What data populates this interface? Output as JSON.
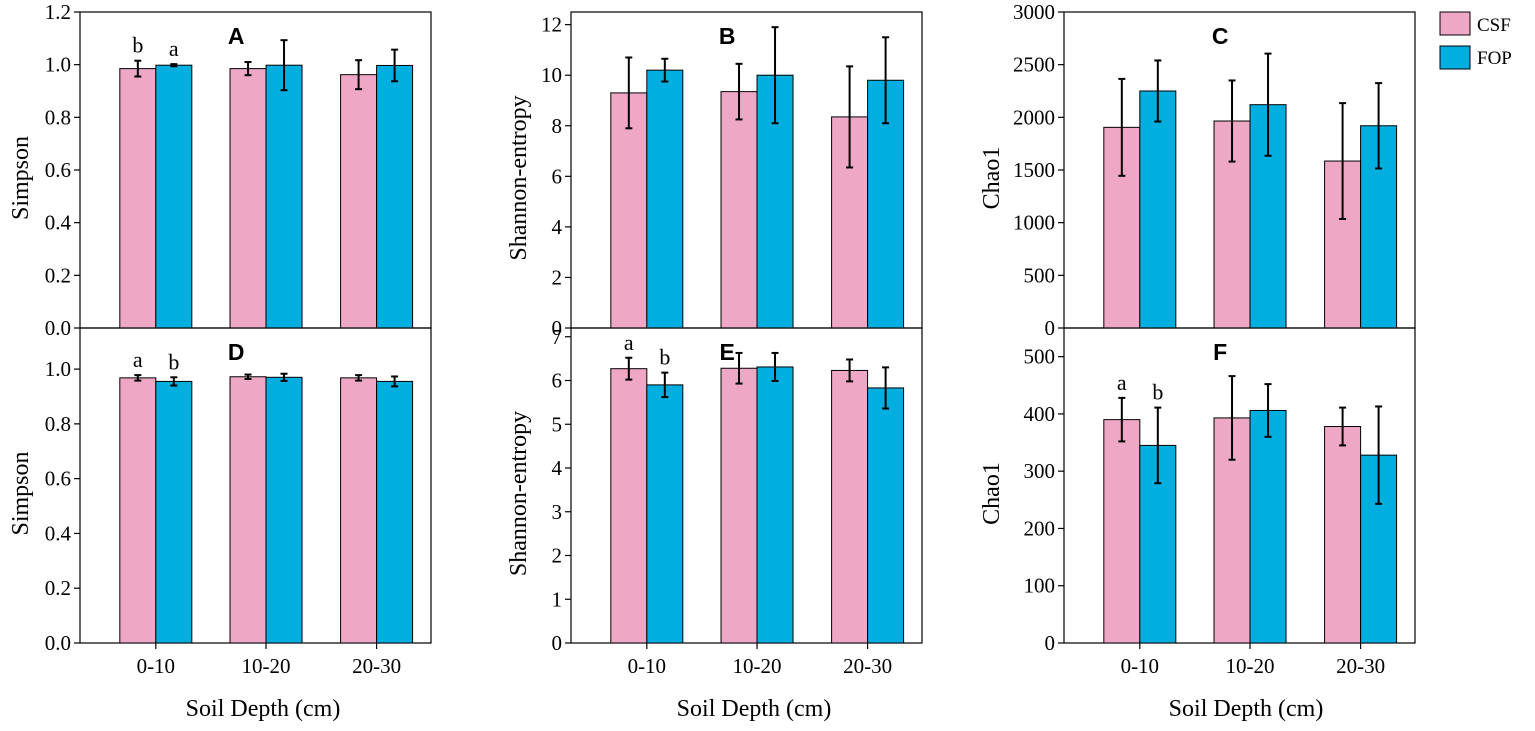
{
  "figure": {
    "xlabel": "Soil Depth (cm)",
    "categories": [
      "0-10",
      "10-20",
      "20-30"
    ],
    "legend": [
      {
        "name": "CSF",
        "color": "#EEA8C5"
      },
      {
        "name": "FOP",
        "color": "#00AEDF"
      }
    ]
  },
  "chart_data": [
    {
      "panel": "A",
      "type": "bar",
      "ylabel": "Simpson",
      "categories": [
        "0-10",
        "10-20",
        "20-30"
      ],
      "ylim": [
        0,
        1.2
      ],
      "yticks": [
        "0.0",
        "0.2",
        "0.4",
        "0.6",
        "0.8",
        "1.0",
        "1.2"
      ],
      "series": [
        {
          "name": "CSF",
          "values": [
            0.985,
            0.985,
            0.962
          ],
          "errors": [
            0.03,
            0.025,
            0.055
          ],
          "labels": [
            "b",
            "",
            ""
          ]
        },
        {
          "name": "FOP",
          "values": [
            0.998,
            0.998,
            0.997
          ],
          "errors": [
            0.004,
            0.095,
            0.06
          ],
          "labels": [
            "a",
            "",
            ""
          ]
        }
      ]
    },
    {
      "panel": "B",
      "type": "bar",
      "ylabel": "Shannon-entropy",
      "categories": [
        "0-10",
        "10-20",
        "20-30"
      ],
      "ylim": [
        0,
        12.5
      ],
      "yticks": [
        "0",
        "2",
        "4",
        "6",
        "8",
        "10",
        "12"
      ],
      "series": [
        {
          "name": "CSF",
          "values": [
            9.3,
            9.35,
            8.35
          ],
          "errors": [
            1.4,
            1.1,
            2.0
          ],
          "labels": [
            "",
            "",
            ""
          ]
        },
        {
          "name": "FOP",
          "values": [
            10.2,
            10.0,
            9.8
          ],
          "errors": [
            0.45,
            1.9,
            1.7
          ],
          "labels": [
            "",
            "",
            ""
          ]
        }
      ]
    },
    {
      "panel": "C",
      "type": "bar",
      "ylabel": "Chao1",
      "categories": [
        "0-10",
        "10-20",
        "20-30"
      ],
      "ylim": [
        0,
        3000
      ],
      "yticks": [
        "0",
        "500",
        "1000",
        "1500",
        "2000",
        "2500",
        "3000"
      ],
      "series": [
        {
          "name": "CSF",
          "values": [
            1905,
            1965,
            1585
          ],
          "errors": [
            460,
            385,
            550
          ],
          "labels": [
            "",
            "",
            ""
          ]
        },
        {
          "name": "FOP",
          "values": [
            2250,
            2120,
            1920
          ],
          "errors": [
            290,
            485,
            405
          ],
          "labels": [
            "",
            "",
            ""
          ]
        }
      ]
    },
    {
      "panel": "D",
      "type": "bar",
      "ylabel": "Simpson",
      "categories": [
        "0-10",
        "10-20",
        "20-30"
      ],
      "ylim": [
        0,
        1.15
      ],
      "yticks": [
        "0.0",
        "0.2",
        "0.4",
        "0.6",
        "0.8",
        "1.0"
      ],
      "series": [
        {
          "name": "CSF",
          "values": [
            0.968,
            0.972,
            0.968
          ],
          "errors": [
            0.01,
            0.008,
            0.01
          ],
          "labels": [
            "a",
            "",
            ""
          ]
        },
        {
          "name": "FOP",
          "values": [
            0.955,
            0.97,
            0.955
          ],
          "errors": [
            0.015,
            0.013,
            0.018
          ],
          "labels": [
            "b",
            "",
            ""
          ]
        }
      ]
    },
    {
      "panel": "E",
      "type": "bar",
      "ylabel": "Shannon-entropy",
      "categories": [
        "0-10",
        "10-20",
        "20-30"
      ],
      "ylim": [
        0,
        7.2
      ],
      "yticks": [
        "0",
        "1",
        "2",
        "3",
        "4",
        "5",
        "6",
        "7"
      ],
      "series": [
        {
          "name": "CSF",
          "values": [
            6.27,
            6.28,
            6.23
          ],
          "errors": [
            0.25,
            0.35,
            0.25
          ],
          "labels": [
            "a",
            "",
            ""
          ]
        },
        {
          "name": "FOP",
          "values": [
            5.9,
            6.31,
            5.83
          ],
          "errors": [
            0.28,
            0.32,
            0.47
          ],
          "labels": [
            "b",
            "",
            ""
          ]
        }
      ]
    },
    {
      "panel": "F",
      "type": "bar",
      "ylabel": "Chao1",
      "categories": [
        "0-10",
        "10-20",
        "20-30"
      ],
      "ylim": [
        0,
        550
      ],
      "yticks": [
        "0",
        "100",
        "200",
        "300",
        "400",
        "500"
      ],
      "series": [
        {
          "name": "CSF",
          "values": [
            390,
            393,
            378
          ],
          "errors": [
            38,
            73,
            33
          ],
          "labels": [
            "a",
            "",
            ""
          ]
        },
        {
          "name": "FOP",
          "values": [
            345,
            406,
            328
          ],
          "errors": [
            66,
            46,
            85
          ],
          "labels": [
            "b",
            "",
            ""
          ]
        }
      ]
    }
  ]
}
